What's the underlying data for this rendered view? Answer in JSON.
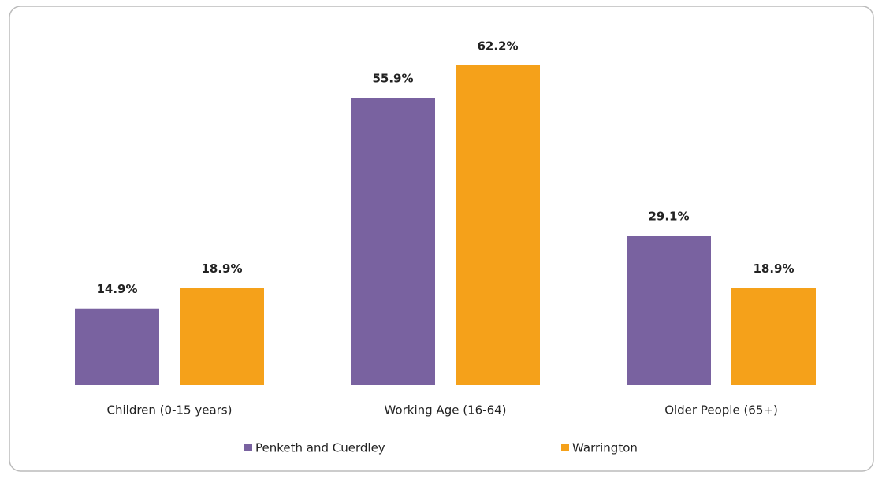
{
  "chart_data": {
    "type": "bar",
    "categories": [
      "Children (0-15 years)",
      "Working Age (16-64)",
      "Older People (65+)"
    ],
    "series": [
      {
        "name": "Penketh and Cuerdley",
        "color": "#7962a0",
        "values": [
          14.9,
          55.9,
          29.1
        ],
        "value_labels": [
          "14.9%",
          "55.9%",
          "29.1%"
        ]
      },
      {
        "name": "Warrington",
        "color": "#f5a11a",
        "values": [
          18.9,
          62.2,
          18.9
        ],
        "value_labels": [
          "18.9%",
          "62.2%",
          "18.9%"
        ]
      }
    ],
    "legend": "bottom"
  }
}
